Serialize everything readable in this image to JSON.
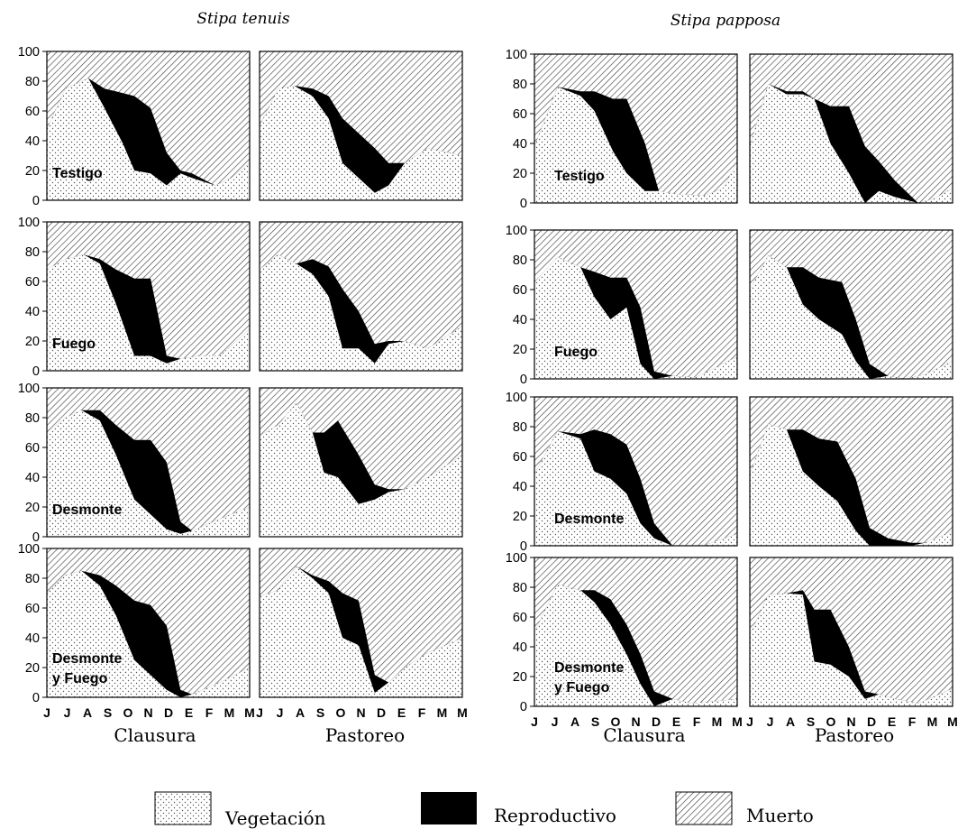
{
  "colors": {
    "reproductivo": "#000000",
    "muerto_hatch": "#444444",
    "vegetacion_dots": "#555555",
    "background": "#ffffff"
  },
  "legend": [
    {
      "key": "veg",
      "label": "Vegetación",
      "pattern": "dots"
    },
    {
      "key": "rep",
      "label": "Reproductivo",
      "pattern": "solid-black"
    },
    {
      "key": "dead",
      "label": "Muerto",
      "pattern": "diagonal-hatch"
    }
  ],
  "chart_data": {
    "type": "area",
    "stacked": true,
    "ylim": [
      0,
      100
    ],
    "yticks": [
      0,
      20,
      40,
      60,
      80,
      100
    ],
    "months": [
      "J",
      "J",
      "A",
      "S",
      "O",
      "N",
      "D",
      "E",
      "F",
      "M",
      "M"
    ],
    "species": [
      "Stipa tenuis",
      "Stipa papposa"
    ],
    "columns": [
      "Clausura",
      "Pastoreo"
    ],
    "treatments": [
      [
        "Testigo"
      ],
      [
        "Fuego"
      ],
      [
        "Desmonte"
      ],
      [
        "Desmonte",
        "y Fuego"
      ]
    ],
    "series_order": [
      "Vegetación",
      "Reproductivo",
      "Muerto"
    ],
    "panels": [
      {
        "species": "Stipa tenuis",
        "column": "Clausura",
        "treatment": "Testigo",
        "points": [
          [
            0,
            48,
            48
          ],
          [
            0.8,
            75,
            75
          ],
          [
            1.8,
            82,
            82
          ],
          [
            2.5,
            62,
            75
          ],
          [
            3.3,
            38,
            72
          ],
          [
            3.8,
            20,
            70
          ],
          [
            4.5,
            18,
            62
          ],
          [
            5.2,
            10,
            32
          ],
          [
            5.8,
            18,
            20
          ],
          [
            6.3,
            15,
            18
          ],
          [
            7.3,
            10,
            10
          ],
          [
            8,
            15,
            15
          ],
          [
            8.8,
            25,
            25
          ]
        ]
      },
      {
        "species": "Stipa tenuis",
        "column": "Pastoreo",
        "treatment": "Testigo",
        "points": [
          [
            0,
            50,
            50
          ],
          [
            0.8,
            75,
            75
          ],
          [
            1.5,
            77,
            77
          ],
          [
            2.3,
            70,
            75
          ],
          [
            3,
            55,
            70
          ],
          [
            3.6,
            25,
            55
          ],
          [
            4.3,
            15,
            45
          ],
          [
            5,
            5,
            35
          ],
          [
            5.6,
            10,
            25
          ],
          [
            6.3,
            25,
            25
          ],
          [
            7.3,
            35,
            35
          ],
          [
            8.8,
            30,
            30
          ]
        ]
      },
      {
        "species": "Stipa papposa",
        "column": "Clausura",
        "treatment": "Testigo",
        "points": [
          [
            0,
            38,
            38
          ],
          [
            1,
            78,
            78
          ],
          [
            2,
            72,
            75
          ],
          [
            2.6,
            62,
            75
          ],
          [
            3.4,
            35,
            70
          ],
          [
            4,
            20,
            70
          ],
          [
            4.8,
            8,
            40
          ],
          [
            5.4,
            8,
            8
          ],
          [
            6.2,
            6,
            6
          ],
          [
            7.4,
            5,
            5
          ],
          [
            8.2,
            10,
            10
          ],
          [
            8.8,
            28,
            28
          ]
        ]
      },
      {
        "species": "Stipa papposa",
        "column": "Pastoreo",
        "treatment": "Testigo",
        "points": [
          [
            0,
            38,
            38
          ],
          [
            0.8,
            80,
            80
          ],
          [
            1.6,
            73,
            75
          ],
          [
            2.3,
            73,
            75
          ],
          [
            2.8,
            70,
            70
          ],
          [
            3.5,
            40,
            65
          ],
          [
            4.3,
            20,
            65
          ],
          [
            5,
            0,
            38
          ],
          [
            5.6,
            8,
            28
          ],
          [
            6.3,
            4,
            15
          ],
          [
            7.3,
            0,
            0
          ],
          [
            8,
            3,
            3
          ],
          [
            8.8,
            10,
            10
          ]
        ]
      },
      {
        "species": "Stipa tenuis",
        "column": "Clausura",
        "treatment": "Fuego",
        "points": [
          [
            0,
            68,
            68
          ],
          [
            0.8,
            75,
            75
          ],
          [
            1.6,
            78,
            78
          ],
          [
            2.3,
            72,
            75
          ],
          [
            3,
            45,
            68
          ],
          [
            3.8,
            10,
            62
          ],
          [
            4.5,
            10,
            62
          ],
          [
            5.2,
            5,
            10
          ],
          [
            5.8,
            8,
            8
          ],
          [
            6.6,
            10,
            10
          ],
          [
            7.5,
            10,
            10
          ],
          [
            8.8,
            28,
            28
          ]
        ]
      },
      {
        "species": "Stipa tenuis",
        "column": "Pastoreo",
        "treatment": "Fuego",
        "points": [
          [
            0,
            68,
            68
          ],
          [
            0.8,
            78,
            78
          ],
          [
            1.6,
            72,
            72
          ],
          [
            2.3,
            65,
            75
          ],
          [
            3,
            50,
            70
          ],
          [
            3.6,
            15,
            55
          ],
          [
            4.3,
            15,
            40
          ],
          [
            5,
            5,
            18
          ],
          [
            5.6,
            18,
            20
          ],
          [
            6.3,
            20,
            20
          ],
          [
            7.3,
            15,
            15
          ],
          [
            8.8,
            30,
            30
          ]
        ]
      },
      {
        "species": "Stipa papposa",
        "column": "Clausura",
        "treatment": "Fuego",
        "points": [
          [
            0,
            65,
            65
          ],
          [
            1,
            82,
            82
          ],
          [
            2,
            75,
            75
          ],
          [
            2.6,
            55,
            72
          ],
          [
            3.3,
            40,
            68
          ],
          [
            4,
            48,
            68
          ],
          [
            4.6,
            10,
            48
          ],
          [
            5.2,
            0,
            5
          ],
          [
            6,
            2,
            2
          ],
          [
            7,
            1,
            1
          ],
          [
            8.8,
            15,
            15
          ]
        ]
      },
      {
        "species": "Stipa papposa",
        "column": "Pastoreo",
        "treatment": "Fuego",
        "points": [
          [
            0,
            60,
            60
          ],
          [
            0.8,
            83,
            83
          ],
          [
            1.6,
            75,
            75
          ],
          [
            2.3,
            50,
            75
          ],
          [
            3,
            40,
            68
          ],
          [
            4,
            30,
            65
          ],
          [
            4.6,
            12,
            40
          ],
          [
            5.2,
            0,
            10
          ],
          [
            6,
            2,
            2
          ],
          [
            6.8,
            0,
            0
          ],
          [
            7.6,
            3,
            3
          ],
          [
            8.8,
            12,
            12
          ]
        ]
      },
      {
        "species": "Stipa tenuis",
        "column": "Clausura",
        "treatment": "Desmonte",
        "points": [
          [
            0,
            70,
            70
          ],
          [
            0.8,
            80,
            80
          ],
          [
            1.5,
            85,
            85
          ],
          [
            2.3,
            78,
            85
          ],
          [
            3,
            55,
            75
          ],
          [
            3.8,
            25,
            65
          ],
          [
            4.5,
            15,
            65
          ],
          [
            5.2,
            5,
            50
          ],
          [
            5.8,
            2,
            10
          ],
          [
            6.3,
            4,
            4
          ],
          [
            7.5,
            12,
            12
          ],
          [
            8.8,
            20,
            20
          ]
        ]
      },
      {
        "species": "Stipa tenuis",
        "column": "Pastoreo",
        "treatment": "Desmonte",
        "points": [
          [
            0,
            68,
            68
          ],
          [
            0.8,
            75,
            75
          ],
          [
            1.6,
            90,
            90
          ],
          [
            2.3,
            70,
            70
          ],
          [
            2.8,
            43,
            70
          ],
          [
            3.4,
            40,
            78
          ],
          [
            4.3,
            22,
            55
          ],
          [
            5,
            25,
            35
          ],
          [
            5.6,
            30,
            32
          ],
          [
            6.3,
            32,
            32
          ],
          [
            7.3,
            40,
            40
          ],
          [
            8.8,
            55,
            55
          ]
        ]
      },
      {
        "species": "Stipa papposa",
        "column": "Clausura",
        "treatment": "Desmonte",
        "points": [
          [
            0,
            48,
            48
          ],
          [
            1,
            77,
            77
          ],
          [
            2,
            72,
            75
          ],
          [
            2.6,
            50,
            78
          ],
          [
            3.3,
            45,
            75
          ],
          [
            4,
            35,
            68
          ],
          [
            4.6,
            15,
            45
          ],
          [
            5.2,
            5,
            15
          ],
          [
            6,
            0,
            0
          ],
          [
            7.3,
            0,
            0
          ],
          [
            8.8,
            8,
            8
          ]
        ]
      },
      {
        "species": "Stipa papposa",
        "column": "Pastoreo",
        "treatment": "Desmonte",
        "points": [
          [
            0,
            48,
            48
          ],
          [
            0.8,
            82,
            82
          ],
          [
            1.6,
            78,
            78
          ],
          [
            2.3,
            50,
            78
          ],
          [
            3,
            40,
            72
          ],
          [
            3.8,
            30,
            70
          ],
          [
            4.6,
            10,
            45
          ],
          [
            5.2,
            0,
            12
          ],
          [
            6,
            0,
            5
          ],
          [
            7,
            0,
            2
          ],
          [
            7.6,
            2,
            2
          ],
          [
            8.8,
            10,
            10
          ]
        ]
      },
      {
        "species": "Stipa tenuis",
        "column": "Clausura",
        "treatment": "Desmonte y Fuego",
        "points": [
          [
            0,
            70,
            70
          ],
          [
            0.8,
            82,
            82
          ],
          [
            1.5,
            85,
            85
          ],
          [
            2.3,
            75,
            82
          ],
          [
            3,
            55,
            75
          ],
          [
            3.8,
            25,
            65
          ],
          [
            4.5,
            15,
            62
          ],
          [
            5.2,
            5,
            48
          ],
          [
            5.8,
            0,
            5
          ],
          [
            6.3,
            2,
            2
          ],
          [
            7.5,
            10,
            10
          ],
          [
            8.8,
            20,
            20
          ]
        ]
      },
      {
        "species": "Stipa tenuis",
        "column": "Pastoreo",
        "treatment": "Desmonte y Fuego",
        "points": [
          [
            0,
            68,
            68
          ],
          [
            0.8,
            72,
            72
          ],
          [
            1.6,
            88,
            88
          ],
          [
            2.3,
            80,
            82
          ],
          [
            3,
            70,
            78
          ],
          [
            3.6,
            40,
            70
          ],
          [
            4.3,
            35,
            65
          ],
          [
            5,
            3,
            15
          ],
          [
            5.6,
            10,
            10
          ],
          [
            6.3,
            20,
            20
          ],
          [
            7.3,
            30,
            30
          ],
          [
            8.8,
            40,
            40
          ]
        ]
      },
      {
        "species": "Stipa papposa",
        "column": "Clausura",
        "treatment": "Desmonte y Fuego",
        "points": [
          [
            0,
            50,
            50
          ],
          [
            1,
            82,
            82
          ],
          [
            2,
            78,
            78
          ],
          [
            2.6,
            70,
            78
          ],
          [
            3.3,
            55,
            72
          ],
          [
            4,
            35,
            55
          ],
          [
            4.6,
            15,
            35
          ],
          [
            5.2,
            0,
            10
          ],
          [
            6,
            5,
            5
          ],
          [
            6.8,
            2,
            2
          ],
          [
            7.6,
            3,
            3
          ],
          [
            8.8,
            5,
            5
          ]
        ]
      },
      {
        "species": "Stipa papposa",
        "column": "Pastoreo",
        "treatment": "Desmonte y Fuego",
        "points": [
          [
            0,
            48,
            48
          ],
          [
            0.8,
            75,
            75
          ],
          [
            1.6,
            76,
            76
          ],
          [
            2.3,
            75,
            78
          ],
          [
            2.8,
            30,
            65
          ],
          [
            3.5,
            28,
            65
          ],
          [
            4.3,
            20,
            40
          ],
          [
            5,
            5,
            10
          ],
          [
            5.6,
            8,
            8
          ],
          [
            6.3,
            5,
            5
          ],
          [
            7.3,
            2,
            2
          ],
          [
            8.8,
            12,
            12
          ]
        ]
      }
    ]
  }
}
